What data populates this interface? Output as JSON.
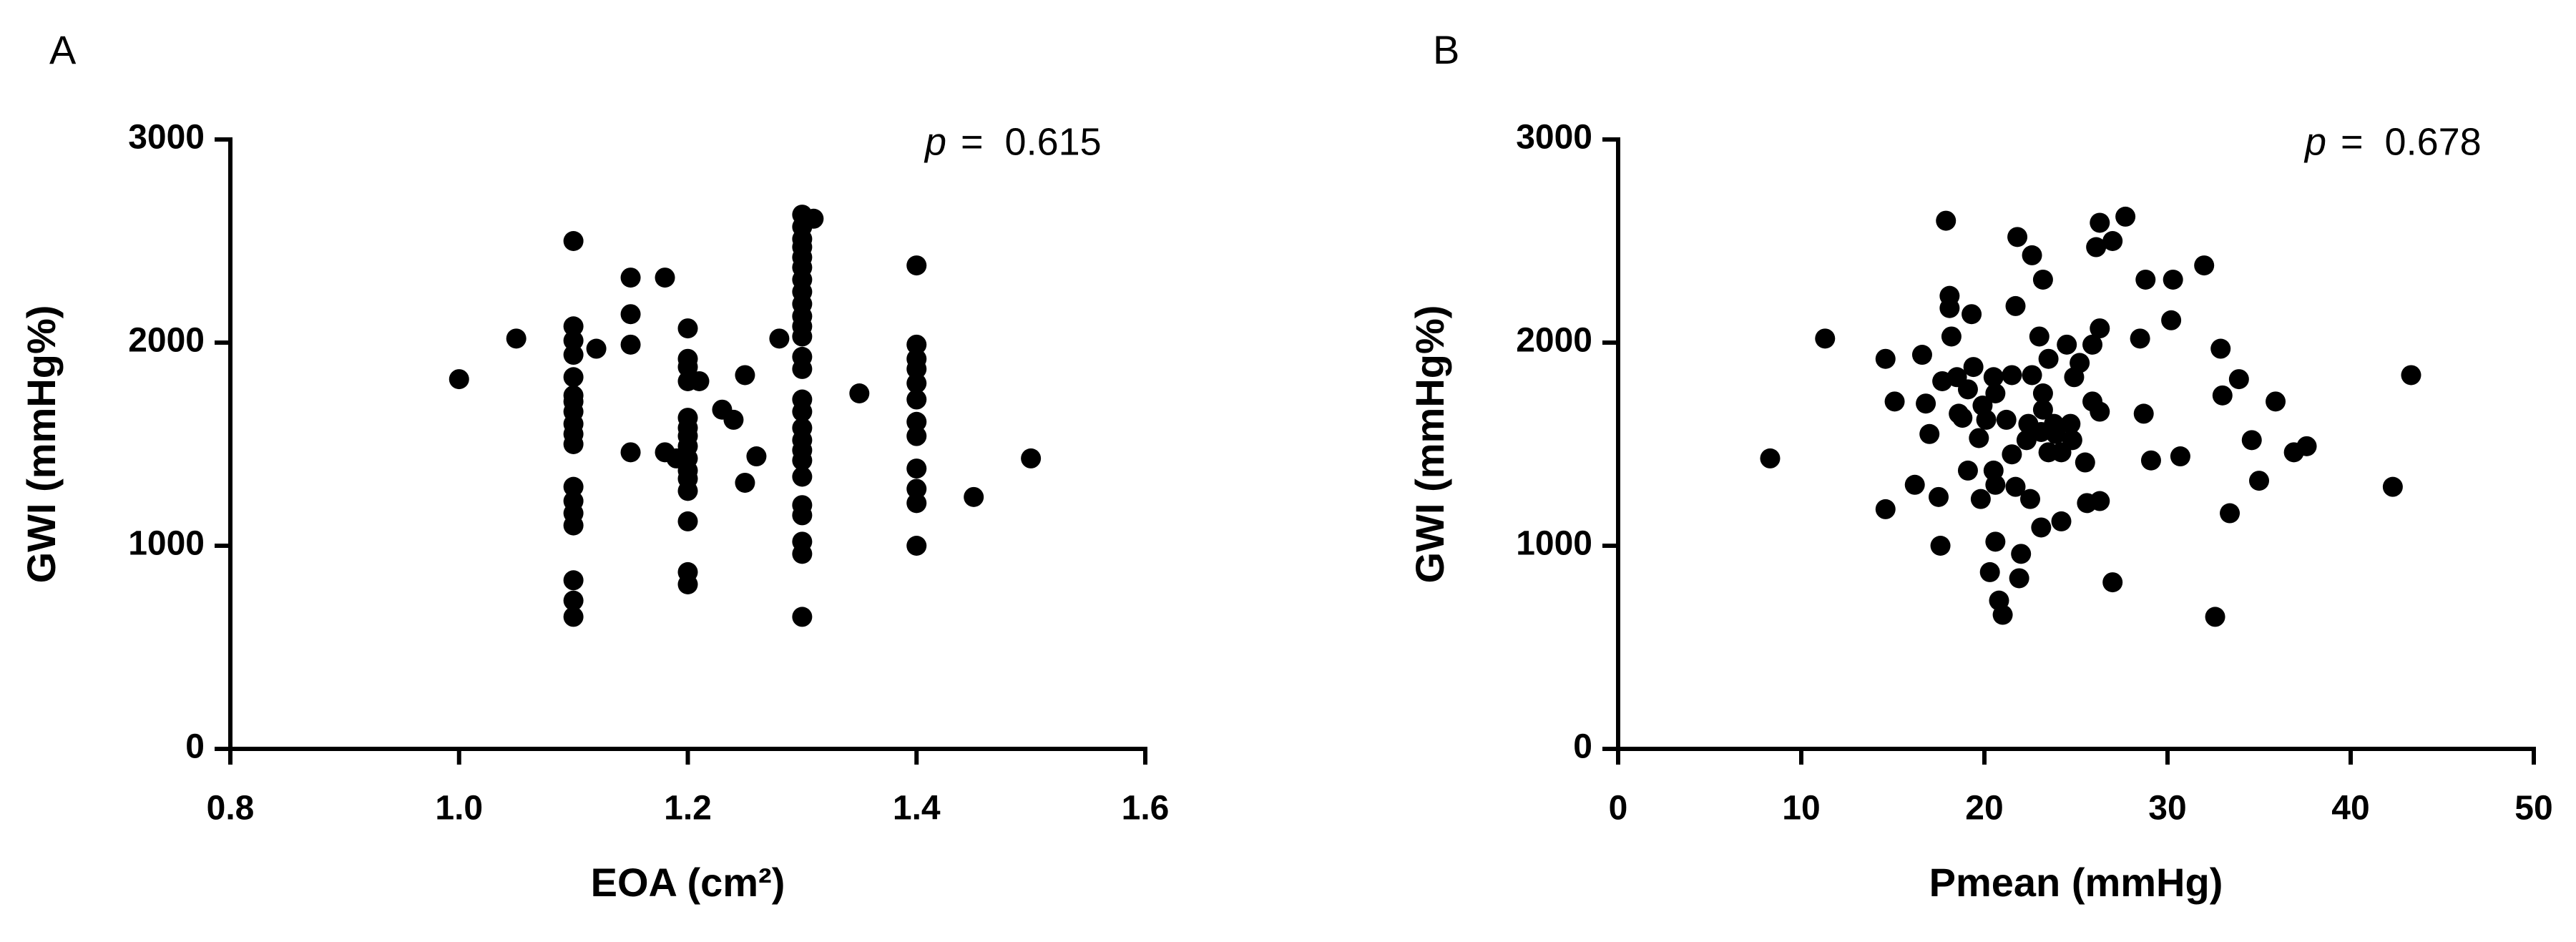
{
  "chart_data": [
    {
      "type": "scatter",
      "panel_label": "A",
      "color": "#000000",
      "x_label": "EOA (cm²)",
      "y_label": "GWI (mmHg%)",
      "annotation": {
        "symbol": "p",
        "text": "=  0.615"
      },
      "xlim": [
        0.8,
        1.6
      ],
      "ylim": [
        0,
        3000
      ],
      "xticks": [
        0.8,
        {
          "value": 1,
          "label": "1.0"
        },
        1.2,
        1.4,
        1.6
      ],
      "yticks": [
        0,
        1000,
        2000,
        3000
      ],
      "x": [
        1.0,
        1.05,
        1.1,
        1.1,
        1.1,
        1.1,
        1.1,
        1.1,
        1.1,
        1.1,
        1.1,
        1.1,
        1.1,
        1.1,
        1.1,
        1.1,
        1.1,
        1.1,
        1.1,
        1.1,
        1.12,
        1.15,
        1.15,
        1.15,
        1.15,
        1.18,
        1.18,
        1.19,
        1.2,
        1.2,
        1.2,
        1.2,
        1.2,
        1.2,
        1.2,
        1.2,
        1.2,
        1.2,
        1.2,
        1.2,
        1.2,
        1.2,
        1.2,
        1.21,
        1.23,
        1.24,
        1.25,
        1.25,
        1.26,
        1.28,
        1.3,
        1.3,
        1.3,
        1.3,
        1.3,
        1.3,
        1.3,
        1.3,
        1.3,
        1.3,
        1.3,
        1.3,
        1.3,
        1.3,
        1.3,
        1.3,
        1.3,
        1.3,
        1.3,
        1.3,
        1.3,
        1.3,
        1.3,
        1.3,
        1.3,
        1.3,
        1.31,
        1.35,
        1.4,
        1.4,
        1.4,
        1.4,
        1.4,
        1.4,
        1.4,
        1.4,
        1.4,
        1.4,
        1.4,
        1.4,
        1.45,
        1.5
      ],
      "values": [
        1820,
        2020,
        2500,
        2080,
        2010,
        1940,
        1830,
        1740,
        1710,
        1660,
        1600,
        1550,
        1500,
        1290,
        1220,
        1160,
        1100,
        830,
        730,
        650,
        1970,
        2320,
        2140,
        1990,
        1460,
        2320,
        1460,
        1430,
        2070,
        1920,
        1880,
        1810,
        1630,
        1580,
        1540,
        1490,
        1430,
        1370,
        1330,
        1270,
        1120,
        870,
        810,
        1810,
        1670,
        1620,
        1840,
        1310,
        1440,
        2020,
        2630,
        2570,
        2510,
        2470,
        2420,
        2370,
        2310,
        2250,
        2190,
        2130,
        2080,
        2030,
        1930,
        1870,
        1720,
        1660,
        1580,
        1520,
        1470,
        1420,
        1340,
        1200,
        1150,
        1020,
        960,
        650,
        2610,
        1750,
        2380,
        1990,
        1920,
        1870,
        1800,
        1720,
        1610,
        1540,
        1380,
        1280,
        1210,
        1000,
        1240,
        1430
      ]
    },
    {
      "type": "scatter",
      "panel_label": "B",
      "color": "#000000",
      "x_label": "Pmean (mmHg)",
      "y_label": "GWI (mmHg%)",
      "annotation": {
        "symbol": "p",
        "text": "=  0.678"
      },
      "xlim": [
        0,
        50
      ],
      "ylim": [
        0,
        3000
      ],
      "xticks": [
        0,
        10,
        20,
        30,
        40,
        50
      ],
      "yticks": [
        0,
        1000,
        2000,
        3000
      ],
      "x": [
        8.3,
        11.3,
        14.6,
        14.6,
        15.1,
        16.2,
        16.6,
        16.8,
        17.0,
        17.5,
        17.6,
        17.9,
        18.1,
        18.1,
        18.2,
        17.7,
        18.5,
        18.6,
        18.8,
        19.3,
        19.1,
        19.4,
        19.1,
        19.7,
        19.9,
        20.1,
        19.8,
        20.3,
        20.5,
        20.6,
        20.5,
        20.6,
        20.6,
        20.8,
        21.0,
        21.2,
        21.5,
        21.5,
        21.8,
        21.7,
        21.7,
        22.0,
        21.9,
        22.4,
        22.3,
        22.5,
        22.6,
        22.6,
        23.2,
        23.0,
        23.2,
        23.2,
        23.1,
        23.1,
        23.5,
        23.5,
        23.8,
        23.9,
        24.2,
        24.2,
        24.5,
        24.7,
        24.8,
        24.9,
        25.2,
        25.5,
        25.6,
        25.9,
        25.9,
        26.3,
        26.1,
        26.3,
        26.3,
        26.3,
        27.0,
        27.0,
        27.7,
        28.5,
        28.8,
        28.7,
        29.1,
        30.2,
        30.3,
        30.7,
        32.0,
        32.9,
        33.0,
        32.6,
        33.4,
        33.9,
        34.6,
        35.0,
        35.9,
        36.9,
        37.6,
        42.3,
        43.3
      ],
      "values": [
        1430,
        2020,
        1180,
        1920,
        1710,
        1300,
        1940,
        1700,
        1550,
        1240,
        1000,
        2600,
        2230,
        2170,
        2030,
        1810,
        1830,
        1650,
        1630,
        2140,
        1770,
        1880,
        1370,
        1530,
        1690,
        1620,
        1230,
        870,
        1830,
        1750,
        1370,
        1300,
        1020,
        730,
        660,
        1620,
        1840,
        1450,
        2520,
        2180,
        1290,
        960,
        840,
        1600,
        1520,
        1230,
        1840,
        2430,
        2310,
        2030,
        1750,
        1670,
        1560,
        1090,
        1920,
        1460,
        1600,
        1550,
        1120,
        1460,
        1990,
        1600,
        1520,
        1830,
        1900,
        1410,
        1210,
        1990,
        1710,
        2590,
        2470,
        2070,
        1660,
        1220,
        2500,
        820,
        2620,
        2020,
        2310,
        1650,
        1420,
        2110,
        2310,
        1440,
        2380,
        1970,
        1740,
        650,
        1160,
        1820,
        1520,
        1320,
        1710,
        1460,
        1490,
        1290,
        1840
      ]
    }
  ]
}
